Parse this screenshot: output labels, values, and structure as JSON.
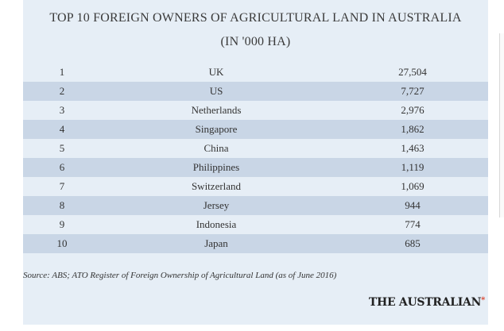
{
  "title": {
    "line1": "TOP 10 FOREIGN OWNERS OF AGRICULTURAL LAND IN AUSTRALIA",
    "line2": "(IN '000 HA)"
  },
  "rows": [
    {
      "rank": "1",
      "country": "UK",
      "value": "27,504"
    },
    {
      "rank": "2",
      "country": "US",
      "value": "7,727"
    },
    {
      "rank": "3",
      "country": "Netherlands",
      "value": "2,976"
    },
    {
      "rank": "4",
      "country": "Singapore",
      "value": "1,862"
    },
    {
      "rank": "5",
      "country": "China",
      "value": "1,463"
    },
    {
      "rank": "6",
      "country": "Philippines",
      "value": "1,119"
    },
    {
      "rank": "7",
      "country": "Switzerland",
      "value": "1,069"
    },
    {
      "rank": "8",
      "country": "Jersey",
      "value": "944"
    },
    {
      "rank": "9",
      "country": "Indonesia",
      "value": "774"
    },
    {
      "rank": "10",
      "country": "Japan",
      "value": "685"
    }
  ],
  "source": "Source: ABS; ATO Register of Foreign Ownership of Agricultural Land (as of June 2016)",
  "brand": {
    "name": "THE AUSTRALIAN",
    "mark_icon": "star-icon",
    "mark_glyph": "*"
  },
  "colors": {
    "panel_background": "#e6eef6",
    "shaded_row": "#c9d6e6",
    "brand_mark": "#d9412b"
  }
}
